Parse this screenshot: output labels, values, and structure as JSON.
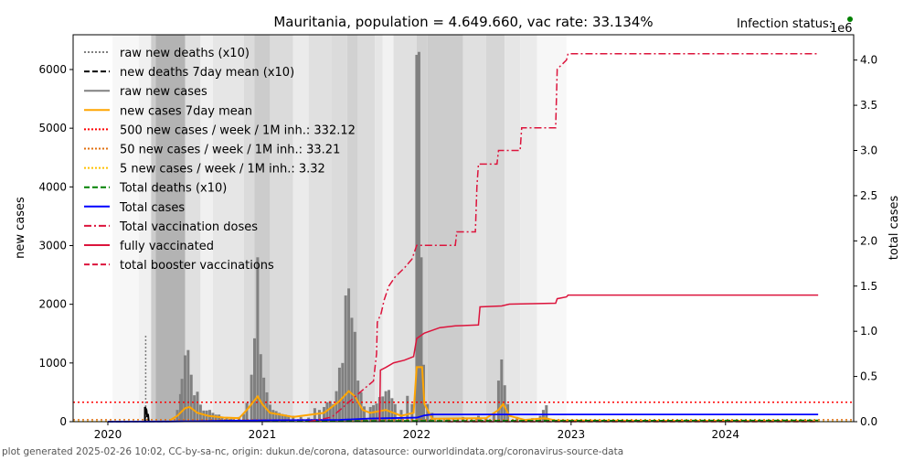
{
  "chart_data": {
    "type": "bar+line",
    "title": "Mauritania, population = 4.649.660, vac rate: 33.134%",
    "status_label": "Infection status:",
    "status_color": "#008000",
    "ylabel": "new cases",
    "y2label": "total cases",
    "y2_multiplier": "1e6",
    "footer": "plot generated 2025-02-26 10:02, CC-by-sa-nc, origin: dukun.de/corona, datasource: ourworldindata.org/coronavirus-source-data",
    "xlim": [
      2019.775,
      2024.83
    ],
    "ylim": [
      0,
      6592
    ],
    "y2lim": [
      0,
      4.28
    ],
    "xticks": [
      "2020",
      "2021",
      "2022",
      "2023",
      "2024"
    ],
    "xtick_values": [
      2020,
      2021,
      2022,
      2023,
      2024
    ],
    "yticks": [
      0,
      1000,
      2000,
      3000,
      4000,
      5000,
      6000
    ],
    "y2ticks": [
      "0.0",
      "0.5",
      "1.0",
      "1.5",
      "2.0",
      "2.5",
      "3.0",
      "3.5",
      "4.0"
    ],
    "y2tick_values": [
      0,
      0.5,
      1,
      1.5,
      2,
      2.5,
      3,
      3.5,
      4
    ],
    "legend_position": "top-left",
    "legend": [
      {
        "label": "raw new deaths (x10)",
        "color": "#808080",
        "style": "dotted"
      },
      {
        "label": "new deaths 7day mean (x10)",
        "color": "#000000",
        "style": "dashed"
      },
      {
        "label": "raw new cases",
        "color": "#808080",
        "style": "solid"
      },
      {
        "label": "new cases 7day mean",
        "color": "#FFA500",
        "style": "solid"
      },
      {
        "label": "500 new cases / week / 1M inh.: 332.12",
        "color": "#FF0000",
        "style": "dotted"
      },
      {
        "label": "50 new cases / week / 1M inh.: 33.21",
        "color": "#E07010",
        "style": "dotted"
      },
      {
        "label": "5 new cases / week / 1M inh.: 3.32",
        "color": "#FFC000",
        "style": "dotted"
      },
      {
        "label": "Total deaths (x10)",
        "color": "#008000",
        "style": "dashed"
      },
      {
        "label": "Total cases",
        "color": "#0000FF",
        "style": "solid"
      },
      {
        "label": "Total vaccination doses",
        "color": "#DC143C",
        "style": "dashdot"
      },
      {
        "label": "fully vaccinated",
        "color": "#DC143C",
        "style": "solid"
      },
      {
        "label": "total booster vaccinations",
        "color": "#DC143C",
        "style": "dashed"
      }
    ],
    "thresholds": [
      332.12,
      33.21,
      3.32
    ],
    "status_bands": [
      [
        2020.03,
        2020.2,
        0.03
      ],
      [
        2020.2,
        2020.28,
        0.06
      ],
      [
        2020.28,
        2020.31,
        0.2
      ],
      [
        2020.31,
        2020.5,
        0.3
      ],
      [
        2020.5,
        2020.6,
        0.12
      ],
      [
        2020.6,
        2020.68,
        0.06
      ],
      [
        2020.68,
        2020.88,
        0.1
      ],
      [
        2020.88,
        2020.95,
        0.14
      ],
      [
        2020.95,
        2021.05,
        0.2
      ],
      [
        2021.05,
        2021.2,
        0.14
      ],
      [
        2021.2,
        2021.3,
        0.08
      ],
      [
        2021.3,
        2021.45,
        0.12
      ],
      [
        2021.45,
        2021.55,
        0.14
      ],
      [
        2021.55,
        2021.62,
        0.18
      ],
      [
        2021.62,
        2021.73,
        0.14
      ],
      [
        2021.73,
        2021.78,
        0.1
      ],
      [
        2021.78,
        2021.85,
        0.05
      ],
      [
        2021.85,
        2022.0,
        0.12
      ],
      [
        2022.0,
        2022.07,
        0.18
      ],
      [
        2022.07,
        2022.3,
        0.2
      ],
      [
        2022.3,
        2022.45,
        0.12
      ],
      [
        2022.45,
        2022.57,
        0.16
      ],
      [
        2022.57,
        2022.67,
        0.1
      ],
      [
        2022.67,
        2022.78,
        0.08
      ],
      [
        2022.78,
        2022.97,
        0.03
      ]
    ],
    "raw_new_cases": [
      [
        2020.45,
        200
      ],
      [
        2020.47,
        470
      ],
      [
        2020.48,
        730
      ],
      [
        2020.5,
        1130
      ],
      [
        2020.52,
        1220
      ],
      [
        2020.54,
        800
      ],
      [
        2020.56,
        450
      ],
      [
        2020.58,
        510
      ],
      [
        2020.6,
        290
      ],
      [
        2020.62,
        190
      ],
      [
        2020.64,
        190
      ],
      [
        2020.66,
        200
      ],
      [
        2020.68,
        150
      ],
      [
        2020.7,
        120
      ],
      [
        2020.72,
        120
      ],
      [
        2020.74,
        80
      ],
      [
        2020.77,
        60
      ],
      [
        2020.8,
        50
      ],
      [
        2020.85,
        80
      ],
      [
        2020.88,
        130
      ],
      [
        2020.9,
        320
      ],
      [
        2020.93,
        800
      ],
      [
        2020.95,
        1420
      ],
      [
        2020.97,
        2800
      ],
      [
        2020.99,
        1150
      ],
      [
        2021.01,
        750
      ],
      [
        2021.03,
        500
      ],
      [
        2021.05,
        290
      ],
      [
        2021.07,
        200
      ],
      [
        2021.09,
        180
      ],
      [
        2021.11,
        150
      ],
      [
        2021.13,
        130
      ],
      [
        2021.15,
        120
      ],
      [
        2021.17,
        110
      ],
      [
        2021.2,
        100
      ],
      [
        2021.25,
        80
      ],
      [
        2021.3,
        70
      ],
      [
        2021.34,
        230
      ],
      [
        2021.37,
        200
      ],
      [
        2021.4,
        250
      ],
      [
        2021.42,
        330
      ],
      [
        2021.44,
        350
      ],
      [
        2021.46,
        300
      ],
      [
        2021.48,
        520
      ],
      [
        2021.5,
        920
      ],
      [
        2021.52,
        1000
      ],
      [
        2021.54,
        2150
      ],
      [
        2021.56,
        2270
      ],
      [
        2021.58,
        1770
      ],
      [
        2021.6,
        1530
      ],
      [
        2021.62,
        700
      ],
      [
        2021.64,
        500
      ],
      [
        2021.66,
        260
      ],
      [
        2021.7,
        250
      ],
      [
        2021.72,
        280
      ],
      [
        2021.74,
        310
      ],
      [
        2021.76,
        420
      ],
      [
        2021.78,
        430
      ],
      [
        2021.8,
        520
      ],
      [
        2021.82,
        540
      ],
      [
        2021.84,
        400
      ],
      [
        2021.86,
        300
      ],
      [
        2021.9,
        200
      ],
      [
        2021.94,
        440
      ],
      [
        2021.97,
        300
      ],
      [
        2022.0,
        6250
      ],
      [
        2022.015,
        6300
      ],
      [
        2022.03,
        2800
      ],
      [
        2022.045,
        970
      ],
      [
        2022.07,
        300
      ],
      [
        2022.1,
        150
      ],
      [
        2022.2,
        60
      ],
      [
        2022.3,
        80
      ],
      [
        2022.4,
        100
      ],
      [
        2022.45,
        60
      ],
      [
        2022.5,
        150
      ],
      [
        2022.53,
        700
      ],
      [
        2022.55,
        1060
      ],
      [
        2022.57,
        620
      ],
      [
        2022.59,
        300
      ],
      [
        2022.65,
        80
      ],
      [
        2022.75,
        60
      ],
      [
        2022.8,
        100
      ],
      [
        2022.82,
        200
      ],
      [
        2022.84,
        280
      ]
    ],
    "new_cases_7day_mean": [
      [
        2020.4,
        20
      ],
      [
        2020.45,
        100
      ],
      [
        2020.5,
        230
      ],
      [
        2020.53,
        250
      ],
      [
        2020.58,
        150
      ],
      [
        2020.65,
        100
      ],
      [
        2020.75,
        70
      ],
      [
        2020.85,
        60
      ],
      [
        2020.9,
        200
      ],
      [
        2020.97,
        430
      ],
      [
        2021.0,
        300
      ],
      [
        2021.05,
        150
      ],
      [
        2021.2,
        80
      ],
      [
        2021.4,
        150
      ],
      [
        2021.5,
        350
      ],
      [
        2021.56,
        520
      ],
      [
        2021.6,
        430
      ],
      [
        2021.65,
        200
      ],
      [
        2021.7,
        150
      ],
      [
        2021.8,
        200
      ],
      [
        2021.9,
        100
      ],
      [
        2021.98,
        150
      ],
      [
        2022.0,
        930
      ],
      [
        2022.035,
        930
      ],
      [
        2022.05,
        300
      ],
      [
        2022.1,
        50
      ],
      [
        2022.45,
        60
      ],
      [
        2022.53,
        200
      ],
      [
        2022.56,
        300
      ],
      [
        2022.6,
        100
      ],
      [
        2022.7,
        30
      ],
      [
        2022.83,
        60
      ],
      [
        2022.9,
        20
      ],
      [
        2024.6,
        10
      ]
    ],
    "raw_new_deaths_x10_spike": [
      2020.245,
      1480
    ],
    "new_deaths_7day_mean_x10": [
      [
        2020.24,
        0
      ],
      [
        2020.24,
        250
      ],
      [
        2020.25,
        200
      ],
      [
        2020.255,
        80
      ],
      [
        2020.26,
        130
      ],
      [
        2020.265,
        0
      ]
    ],
    "total_cases_millions": [
      [
        2020.0,
        0
      ],
      [
        2020.4,
        0.002
      ],
      [
        2020.6,
        0.006
      ],
      [
        2021.0,
        0.015
      ],
      [
        2021.5,
        0.02
      ],
      [
        2021.7,
        0.035
      ],
      [
        2022.0,
        0.045
      ],
      [
        2022.05,
        0.07
      ],
      [
        2022.1,
        0.08
      ],
      [
        2024.6,
        0.08
      ]
    ],
    "total_deaths_x10_millions": [
      [
        2020.0,
        0
      ],
      [
        2021.0,
        0.005
      ],
      [
        2022.0,
        0.01
      ],
      [
        2024.6,
        0.015
      ]
    ],
    "total_vaccination_doses_millions": [
      [
        2021.3,
        0
      ],
      [
        2021.45,
        0.05
      ],
      [
        2021.55,
        0.2
      ],
      [
        2021.65,
        0.35
      ],
      [
        2021.72,
        0.45
      ],
      [
        2021.74,
        0.75
      ],
      [
        2021.745,
        1.1
      ],
      [
        2021.77,
        1.2
      ],
      [
        2021.79,
        1.35
      ],
      [
        2021.82,
        1.5
      ],
      [
        2021.86,
        1.6
      ],
      [
        2021.92,
        1.7
      ],
      [
        2021.97,
        1.8
      ],
      [
        2022.0,
        1.95
      ],
      [
        2022.25,
        1.95
      ],
      [
        2022.26,
        2.1
      ],
      [
        2022.38,
        2.1
      ],
      [
        2022.39,
        2.6
      ],
      [
        2022.4,
        2.85
      ],
      [
        2022.52,
        2.85
      ],
      [
        2022.53,
        3.0
      ],
      [
        2022.67,
        3.0
      ],
      [
        2022.68,
        3.25
      ],
      [
        2022.9,
        3.25
      ],
      [
        2022.91,
        3.9
      ],
      [
        2022.97,
        4.0
      ],
      [
        2022.98,
        4.07
      ],
      [
        2024.6,
        4.07
      ]
    ],
    "fully_vaccinated_millions": [
      [
        2021.76,
        0.0
      ],
      [
        2021.765,
        0.57
      ],
      [
        2021.8,
        0.6
      ],
      [
        2021.85,
        0.65
      ],
      [
        2021.92,
        0.68
      ],
      [
        2021.98,
        0.72
      ],
      [
        2022.0,
        0.92
      ],
      [
        2022.05,
        0.98
      ],
      [
        2022.15,
        1.04
      ],
      [
        2022.25,
        1.06
      ],
      [
        2022.4,
        1.07
      ],
      [
        2022.41,
        1.27
      ],
      [
        2022.55,
        1.28
      ],
      [
        2022.6,
        1.3
      ],
      [
        2022.9,
        1.31
      ],
      [
        2022.91,
        1.36
      ],
      [
        2022.97,
        1.38
      ],
      [
        2022.98,
        1.4
      ],
      [
        2024.6,
        1.4
      ]
    ],
    "total_booster_millions": [
      [
        2022.2,
        0.0
      ],
      [
        2024.6,
        0.0
      ]
    ]
  }
}
